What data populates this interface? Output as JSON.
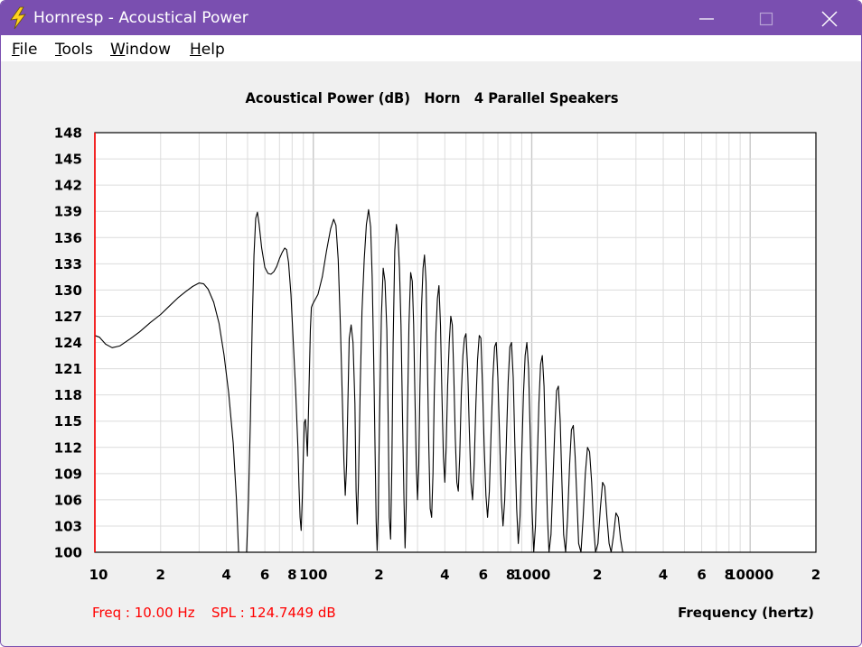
{
  "window": {
    "title": "Hornresp - Acoustical Power",
    "titlebar_color": "#7a4fb0",
    "icon": "lightning-bolt-icon",
    "controls": [
      "minimize-icon",
      "maximize-icon",
      "close-icon"
    ]
  },
  "menu": [
    {
      "label": "File",
      "accel": "F",
      "rest": "ile"
    },
    {
      "label": "Tools",
      "accel": "T",
      "rest": "ools"
    },
    {
      "label": "Window",
      "accel": "W",
      "rest": "indow"
    },
    {
      "label": "Help",
      "accel": "H",
      "rest": "elp"
    }
  ],
  "status": {
    "freq": "Freq : 10.00 Hz",
    "spl": "SPL : 124.7449 dB",
    "color": "#ff0000"
  },
  "chart_data": {
    "type": "line",
    "title": "Acoustical Power (dB)   Horn   4 Parallel Speakers",
    "xlabel": "Frequency (hertz)",
    "ylabel": "",
    "xscale": "log",
    "xlim": [
      10,
      20000
    ],
    "ylim": [
      100,
      148
    ],
    "yticks": [
      "100",
      "103",
      "106",
      "109",
      "112",
      "115",
      "118",
      "121",
      "124",
      "127",
      "130",
      "133",
      "136",
      "139",
      "142",
      "145",
      "148"
    ],
    "xtick_labels": [
      {
        "f": 10,
        "label": "10"
      },
      {
        "f": 20,
        "label": "2"
      },
      {
        "f": 40,
        "label": "4"
      },
      {
        "f": 60,
        "label": "6"
      },
      {
        "f": 80,
        "label": "8"
      },
      {
        "f": 100,
        "label": "100"
      },
      {
        "f": 200,
        "label": "2"
      },
      {
        "f": 400,
        "label": "4"
      },
      {
        "f": 600,
        "label": "6"
      },
      {
        "f": 800,
        "label": "8"
      },
      {
        "f": 1000,
        "label": "1000"
      },
      {
        "f": 2000,
        "label": "2"
      },
      {
        "f": 4000,
        "label": "4"
      },
      {
        "f": 6000,
        "label": "6"
      },
      {
        "f": 8000,
        "label": "8"
      },
      {
        "f": 10000,
        "label": "10000"
      },
      {
        "f": 20000,
        "label": "2"
      }
    ],
    "grid": true,
    "cursor_freq": 10,
    "line_color": "#000000",
    "cursor_color": "#ff0000",
    "series": [
      {
        "values": [
          [
            10,
            124.8
          ],
          [
            10.5,
            124.6
          ],
          [
            11.2,
            123.8
          ],
          [
            12,
            123.4
          ],
          [
            13,
            123.6
          ],
          [
            14.5,
            124.4
          ],
          [
            16,
            125.2
          ],
          [
            18,
            126.3
          ],
          [
            20,
            127.2
          ],
          [
            22,
            128.2
          ],
          [
            24,
            129.1
          ],
          [
            26,
            129.8
          ],
          [
            28,
            130.4
          ],
          [
            30,
            130.8
          ],
          [
            31.5,
            130.7
          ],
          [
            33,
            130.1
          ],
          [
            35,
            128.6
          ],
          [
            37,
            126.2
          ],
          [
            39,
            122.6
          ],
          [
            41,
            118.2
          ],
          [
            43,
            112.5
          ],
          [
            44.5,
            106
          ],
          [
            45.5,
            100
          ],
          [
            49.5,
            100
          ],
          [
            50.5,
            106
          ],
          [
            51.5,
            115
          ],
          [
            52.5,
            126
          ],
          [
            53.5,
            134
          ],
          [
            54.5,
            138.2
          ],
          [
            55.5,
            138.9
          ],
          [
            56.5,
            137.5
          ],
          [
            58,
            134.8
          ],
          [
            60,
            132.6
          ],
          [
            62,
            131.9
          ],
          [
            64,
            131.8
          ],
          [
            66,
            132.1
          ],
          [
            68,
            132.7
          ],
          [
            70,
            133.6
          ],
          [
            72,
            134.3
          ],
          [
            74,
            134.8
          ],
          [
            75.5,
            134.6
          ],
          [
            77,
            133.2
          ],
          [
            79,
            129.5
          ],
          [
            81,
            124
          ],
          [
            83,
            118.5
          ],
          [
            85,
            112
          ],
          [
            86,
            107.5
          ],
          [
            87,
            104
          ],
          [
            88,
            102.5
          ],
          [
            89,
            106
          ],
          [
            90,
            111
          ],
          [
            91,
            114.8
          ],
          [
            92,
            115.2
          ],
          [
            93,
            113.5
          ],
          [
            94,
            111
          ],
          [
            95,
            116
          ],
          [
            96,
            121
          ],
          [
            97,
            125.5
          ],
          [
            98,
            128
          ],
          [
            99,
            128.3
          ],
          [
            100,
            128.5
          ],
          [
            105,
            129.5
          ],
          [
            110,
            131.5
          ],
          [
            115,
            134.5
          ],
          [
            120,
            137
          ],
          [
            124,
            138.1
          ],
          [
            127,
            137.4
          ],
          [
            130,
            133.5
          ],
          [
            133,
            126
          ],
          [
            136,
            117
          ],
          [
            138,
            110.5
          ],
          [
            140,
            106.5
          ],
          [
            142,
            110
          ],
          [
            144,
            117
          ],
          [
            146,
            124.5
          ],
          [
            149,
            126
          ],
          [
            152,
            124
          ],
          [
            155,
            117
          ],
          [
            157,
            107
          ],
          [
            159,
            103.2
          ],
          [
            161,
            108
          ],
          [
            164,
            119
          ],
          [
            167,
            127.5
          ],
          [
            171,
            133.5
          ],
          [
            175,
            137.5
          ],
          [
            179,
            139.2
          ],
          [
            183,
            137.2
          ],
          [
            186,
            131.5
          ],
          [
            189,
            122
          ],
          [
            192,
            111
          ],
          [
            194,
            103.5
          ],
          [
            196,
            100.2
          ],
          [
            198,
            104
          ],
          [
            201,
            115
          ],
          [
            205,
            127
          ],
          [
            209,
            132.5
          ],
          [
            213,
            131
          ],
          [
            217,
            125.5
          ],
          [
            220,
            116
          ],
          [
            223,
            104
          ],
          [
            226,
            101.5
          ],
          [
            229,
            110
          ],
          [
            232,
            124
          ],
          [
            236,
            134.5
          ],
          [
            240,
            137.5
          ],
          [
            244,
            136.3
          ],
          [
            248,
            132.5
          ],
          [
            252,
            126
          ],
          [
            256,
            116
          ],
          [
            260,
            106
          ],
          [
            263,
            100.5
          ],
          [
            266,
            105
          ],
          [
            270,
            116
          ],
          [
            274,
            126
          ],
          [
            279,
            132
          ],
          [
            284,
            131
          ],
          [
            288,
            126
          ],
          [
            292,
            118
          ],
          [
            296,
            110
          ],
          [
            300,
            106
          ],
          [
            304,
            110
          ],
          [
            308,
            119
          ],
          [
            313,
            128
          ],
          [
            318,
            132.5
          ],
          [
            323,
            134
          ],
          [
            328,
            131
          ],
          [
            333,
            122
          ],
          [
            338,
            112
          ],
          [
            343,
            105
          ],
          [
            348,
            104
          ],
          [
            353,
            109
          ],
          [
            358,
            118
          ],
          [
            364,
            125
          ],
          [
            370,
            129
          ],
          [
            376,
            130.5
          ],
          [
            382,
            126
          ],
          [
            388,
            118
          ],
          [
            394,
            111
          ],
          [
            400,
            108
          ],
          [
            406,
            112
          ],
          [
            412,
            119
          ],
          [
            419,
            124
          ],
          [
            426,
            127
          ],
          [
            433,
            126
          ],
          [
            440,
            120
          ],
          [
            447,
            113
          ],
          [
            454,
            108
          ],
          [
            461,
            107
          ],
          [
            468,
            111
          ],
          [
            476,
            118
          ],
          [
            484,
            122.5
          ],
          [
            492,
            124.5
          ],
          [
            500,
            125
          ],
          [
            509,
            121
          ],
          [
            518,
            114
          ],
          [
            527,
            108
          ],
          [
            536,
            106
          ],
          [
            545,
            110
          ],
          [
            555,
            117
          ],
          [
            565,
            122
          ],
          [
            575,
            124.8
          ],
          [
            585,
            124.5
          ],
          [
            595,
            119
          ],
          [
            606,
            112
          ],
          [
            617,
            106.5
          ],
          [
            628,
            104
          ],
          [
            640,
            107
          ],
          [
            652,
            114
          ],
          [
            664,
            120
          ],
          [
            676,
            123.5
          ],
          [
            688,
            124
          ],
          [
            700,
            120
          ],
          [
            713,
            113
          ],
          [
            726,
            106
          ],
          [
            739,
            103
          ],
          [
            752,
            106
          ],
          [
            766,
            113
          ],
          [
            780,
            119.5
          ],
          [
            794,
            123.5
          ],
          [
            808,
            124
          ],
          [
            823,
            120
          ],
          [
            838,
            112
          ],
          [
            853,
            105
          ],
          [
            868,
            101
          ],
          [
            884,
            104
          ],
          [
            900,
            111
          ],
          [
            916,
            118
          ],
          [
            933,
            122.5
          ],
          [
            950,
            124
          ],
          [
            967,
            121
          ],
          [
            985,
            113
          ],
          [
            1003,
            105
          ],
          [
            1021,
            100
          ],
          [
            1040,
            103
          ],
          [
            1059,
            110
          ],
          [
            1078,
            117
          ],
          [
            1098,
            121.5
          ],
          [
            1118,
            122.5
          ],
          [
            1138,
            119
          ],
          [
            1159,
            111
          ],
          [
            1180,
            104
          ],
          [
            1200,
            100
          ],
          [
            1225,
            102
          ],
          [
            1250,
            108
          ],
          [
            1275,
            114
          ],
          [
            1300,
            118.5
          ],
          [
            1325,
            119
          ],
          [
            1350,
            115
          ],
          [
            1375,
            108
          ],
          [
            1400,
            102
          ],
          [
            1430,
            100
          ],
          [
            1460,
            104
          ],
          [
            1490,
            110
          ],
          [
            1520,
            114
          ],
          [
            1550,
            114.5
          ],
          [
            1580,
            111
          ],
          [
            1610,
            106
          ],
          [
            1640,
            101
          ],
          [
            1680,
            100
          ],
          [
            1720,
            104
          ],
          [
            1760,
            109
          ],
          [
            1800,
            112
          ],
          [
            1840,
            111.5
          ],
          [
            1880,
            108
          ],
          [
            1920,
            103
          ],
          [
            1960,
            100
          ],
          [
            2010,
            101
          ],
          [
            2060,
            105
          ],
          [
            2110,
            108
          ],
          [
            2160,
            107.5
          ],
          [
            2210,
            104
          ],
          [
            2260,
            101
          ],
          [
            2310,
            100
          ],
          [
            2370,
            102
          ],
          [
            2430,
            104.5
          ],
          [
            2490,
            104
          ],
          [
            2550,
            101.5
          ],
          [
            2610,
            100
          ]
        ]
      }
    ]
  }
}
